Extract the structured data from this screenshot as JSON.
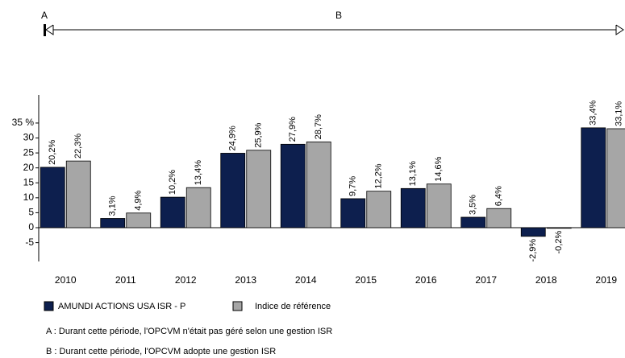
{
  "chart_data": {
    "type": "bar",
    "periods": [
      {
        "label": "A",
        "note": "A : Durant cette période, l'OPCVM n'était pas géré selon une gestion ISR"
      },
      {
        "label": "B",
        "note": "B : Durant cette période, l'OPCVM adopte une gestion ISR"
      }
    ],
    "categories": [
      "2010",
      "2011",
      "2012",
      "2013",
      "2014",
      "2015",
      "2016",
      "2017",
      "2018",
      "2019"
    ],
    "series": [
      {
        "name": "AMUNDI ACTIONS USA ISR - P",
        "color": "#0d1f4e",
        "values": [
          20.2,
          3.1,
          10.2,
          24.9,
          27.9,
          9.7,
          13.1,
          3.5,
          -2.9,
          33.4
        ],
        "value_labels": [
          "20,2%",
          "3,1%",
          "10,2%",
          "24,9%",
          "27,9%",
          "9,7%",
          "13,1%",
          "3,5%",
          "-2,9%",
          "33,4%"
        ]
      },
      {
        "name": "Indice de référence",
        "color": "#a6a6a6",
        "values": [
          22.3,
          4.9,
          13.4,
          25.9,
          28.7,
          12.2,
          14.6,
          6.4,
          -0.2,
          33.1
        ],
        "value_labels": [
          "22,3%",
          "4,9%",
          "13,4%",
          "25,9%",
          "28,7%",
          "12,2%",
          "14,6%",
          "6,4%",
          "-0,2%",
          "33,1%"
        ]
      }
    ],
    "ylim": [
      -11.3,
      44.4
    ],
    "yticks": [
      {
        "value": 35,
        "label": "35 %"
      },
      30,
      25,
      20,
      15,
      10,
      5,
      0,
      -5
    ]
  }
}
